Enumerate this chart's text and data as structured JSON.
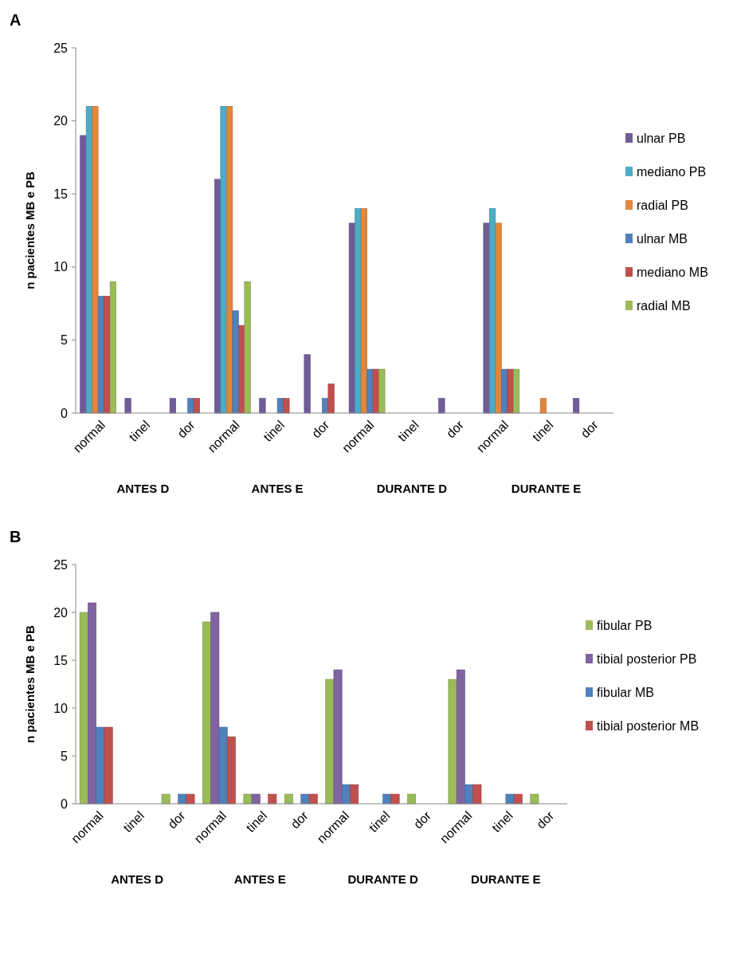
{
  "chart_data": [
    {
      "type": "bar",
      "ylabel": "n pacientes MB e PB",
      "categories": [
        "normal",
        "tinel",
        "dor",
        "normal",
        "tinel",
        "dor",
        "normal",
        "tinel",
        "dor",
        "normal",
        "tinel",
        "dor"
      ],
      "series": [
        {
          "name": "ulnar  PB",
          "color": "#705c99",
          "values": [
            19,
            1,
            1,
            16,
            1,
            4,
            13,
            0,
            1,
            13,
            0,
            1
          ]
        },
        {
          "name": "mediano PB",
          "color": "#4bacc6",
          "values": [
            21,
            0,
            0,
            21,
            0,
            0,
            14,
            0,
            0,
            14,
            0,
            0
          ]
        },
        {
          "name": "radial PB",
          "color": "#e0873c",
          "values": [
            21,
            0,
            0,
            21,
            0,
            0,
            14,
            0,
            0,
            13,
            1,
            0
          ]
        },
        {
          "name": "ulnar MB",
          "color": "#4f81bd",
          "values": [
            8,
            0,
            1,
            7,
            1,
            1,
            3,
            0,
            0,
            3,
            0,
            0
          ]
        },
        {
          "name": "mediano MB",
          "color": "#c0504d",
          "values": [
            8,
            0,
            1,
            6,
            1,
            2,
            3,
            0,
            0,
            3,
            0,
            0
          ]
        },
        {
          "name": "radial MB",
          "color": "#9bbb59",
          "values": [
            9,
            0,
            0,
            9,
            0,
            0,
            3,
            0,
            0,
            3,
            0,
            0
          ]
        }
      ],
      "ylim": [
        0,
        25
      ],
      "yticks": [
        0,
        5,
        10,
        15,
        20,
        25
      ],
      "legend": "right",
      "annotations": [
        "A",
        "ANTES D",
        "ANTES E",
        "DURANTE D",
        "DURANTE E"
      ]
    },
    {
      "type": "bar",
      "ylabel": "n pacientes MB e PB",
      "categories": [
        "normal",
        "tinel",
        "dor",
        "normal",
        "tinel",
        "dor",
        "normal",
        "tinel",
        "dor",
        "normal",
        "tinel",
        "dor"
      ],
      "series": [
        {
          "name": "fibular PB",
          "color": "#9bbb59",
          "values": [
            20,
            0,
            1,
            19,
            1,
            1,
            13,
            0,
            1,
            13,
            0,
            1
          ]
        },
        {
          "name": "tibial posterior PB",
          "color": "#8064a2",
          "values": [
            21,
            0,
            0,
            20,
            1,
            0,
            14,
            0,
            0,
            14,
            0,
            0
          ]
        },
        {
          "name": "fibular MB",
          "color": "#4f81bd",
          "values": [
            8,
            0,
            1,
            8,
            0,
            1,
            2,
            1,
            0,
            2,
            1,
            0
          ]
        },
        {
          "name": "tibial posterior MB",
          "color": "#c0504d",
          "values": [
            8,
            0,
            1,
            7,
            1,
            1,
            2,
            1,
            0,
            2,
            1,
            0
          ]
        }
      ],
      "ylim": [
        0,
        25
      ],
      "yticks": [
        0,
        5,
        10,
        15,
        20,
        25
      ],
      "legend": "right",
      "annotations": [
        "B",
        "ANTES D",
        "ANTES E",
        "DURANTE D",
        "DURANTE E"
      ]
    }
  ]
}
